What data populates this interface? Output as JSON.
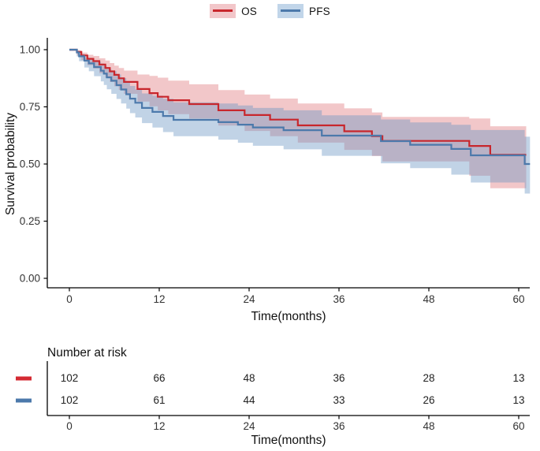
{
  "legend": {
    "items": [
      {
        "label": "OS",
        "line_color": "#C8262C",
        "band_color": "#F2C6C9"
      },
      {
        "label": "PFS",
        "line_color": "#4C79AB",
        "band_color": "#C1D5E9"
      }
    ]
  },
  "chart_data": {
    "type": "line",
    "subtype": "kaplan-meier-step",
    "title": "",
    "xlabel": "Time(months)",
    "ylabel": "Survival probability",
    "xlim": [
      -3,
      61.5
    ],
    "ylim": [
      0,
      1.04
    ],
    "x_ticks": [
      0,
      12,
      24,
      36,
      48,
      60
    ],
    "y_ticks": [
      {
        "label": "1.00",
        "value": 1.0
      },
      {
        "label": "0.75",
        "value": 0.75
      },
      {
        "label": "0.50",
        "value": 0.5
      },
      {
        "label": "0.25",
        "value": 0.25
      },
      {
        "label": "0.00",
        "value": 0.0
      }
    ],
    "grid": false,
    "legend_position": "top",
    "series": [
      {
        "name": "OS",
        "color": "#C8262C",
        "band_color": "#D95F63",
        "band_opacity": 0.35,
        "end_time": 61,
        "steps": [
          [
            0,
            1.0
          ],
          [
            1,
            0.99
          ],
          [
            1.6,
            0.975
          ],
          [
            2.4,
            0.96
          ],
          [
            3.2,
            0.95
          ],
          [
            4,
            0.935
          ],
          [
            4.8,
            0.92
          ],
          [
            5.4,
            0.905
          ],
          [
            6,
            0.89
          ],
          [
            6.6,
            0.875
          ],
          [
            7.3,
            0.859
          ],
          [
            9.1,
            0.828
          ],
          [
            10.7,
            0.81
          ],
          [
            11.8,
            0.794
          ],
          [
            13.2,
            0.779
          ],
          [
            16,
            0.762
          ],
          [
            19.9,
            0.735
          ],
          [
            23.4,
            0.714
          ],
          [
            26.8,
            0.694
          ],
          [
            30.5,
            0.669
          ],
          [
            36.7,
            0.643
          ],
          [
            40.4,
            0.622
          ],
          [
            41.8,
            0.601
          ],
          [
            53.4,
            0.579
          ],
          [
            56.2,
            0.54
          ]
        ],
        "band": [
          [
            0,
            0.0,
            0.005
          ],
          [
            2,
            0.015,
            0.025
          ],
          [
            6,
            0.04,
            0.05
          ],
          [
            12,
            0.085,
            0.06
          ],
          [
            24,
            0.09,
            0.07
          ],
          [
            36,
            0.1,
            0.08
          ],
          [
            48,
            0.11,
            0.1
          ],
          [
            56,
            0.125,
            0.145
          ],
          [
            61,
            0.13,
            0.165
          ]
        ]
      },
      {
        "name": "PFS",
        "color": "#4C79AB",
        "band_color": "#6B97C3",
        "band_opacity": 0.42,
        "end_time": 61.5,
        "steps": [
          [
            0,
            1.0
          ],
          [
            1,
            0.988
          ],
          [
            1.3,
            0.971
          ],
          [
            2,
            0.952
          ],
          [
            2.6,
            0.94
          ],
          [
            3.3,
            0.924
          ],
          [
            4.2,
            0.908
          ],
          [
            4.6,
            0.895
          ],
          [
            5,
            0.879
          ],
          [
            5.6,
            0.864
          ],
          [
            6.3,
            0.845
          ],
          [
            6.9,
            0.826
          ],
          [
            7.6,
            0.805
          ],
          [
            8.1,
            0.786
          ],
          [
            8.8,
            0.768
          ],
          [
            9.7,
            0.745
          ],
          [
            11.1,
            0.728
          ],
          [
            12.5,
            0.71
          ],
          [
            13.9,
            0.693
          ],
          [
            19.9,
            0.683
          ],
          [
            22.5,
            0.672
          ],
          [
            24.5,
            0.66
          ],
          [
            28.6,
            0.648
          ],
          [
            33.7,
            0.624
          ],
          [
            41.6,
            0.6
          ],
          [
            45.5,
            0.584
          ],
          [
            51,
            0.566
          ],
          [
            53.6,
            0.538
          ],
          [
            60.8,
            0.5
          ]
        ],
        "band": [
          [
            0,
            0.0,
            0.005
          ],
          [
            2,
            0.015,
            0.03
          ],
          [
            6,
            0.045,
            0.06
          ],
          [
            12,
            0.075,
            0.07
          ],
          [
            24,
            0.085,
            0.08
          ],
          [
            36,
            0.09,
            0.09
          ],
          [
            48,
            0.1,
            0.105
          ],
          [
            56,
            0.115,
            0.125
          ],
          [
            61.5,
            0.12,
            0.13
          ]
        ]
      }
    ],
    "risk_table": {
      "title": "Number at risk",
      "xlabel": "Time(months)",
      "times": [
        0,
        12,
        24,
        36,
        48,
        60
      ],
      "rows": [
        {
          "name": "OS",
          "color": "#D42A32",
          "counts": [
            102,
            66,
            48,
            36,
            28,
            13
          ]
        },
        {
          "name": "PFS",
          "color": "#4C79AB",
          "counts": [
            102,
            61,
            44,
            33,
            26,
            13
          ]
        }
      ]
    }
  }
}
